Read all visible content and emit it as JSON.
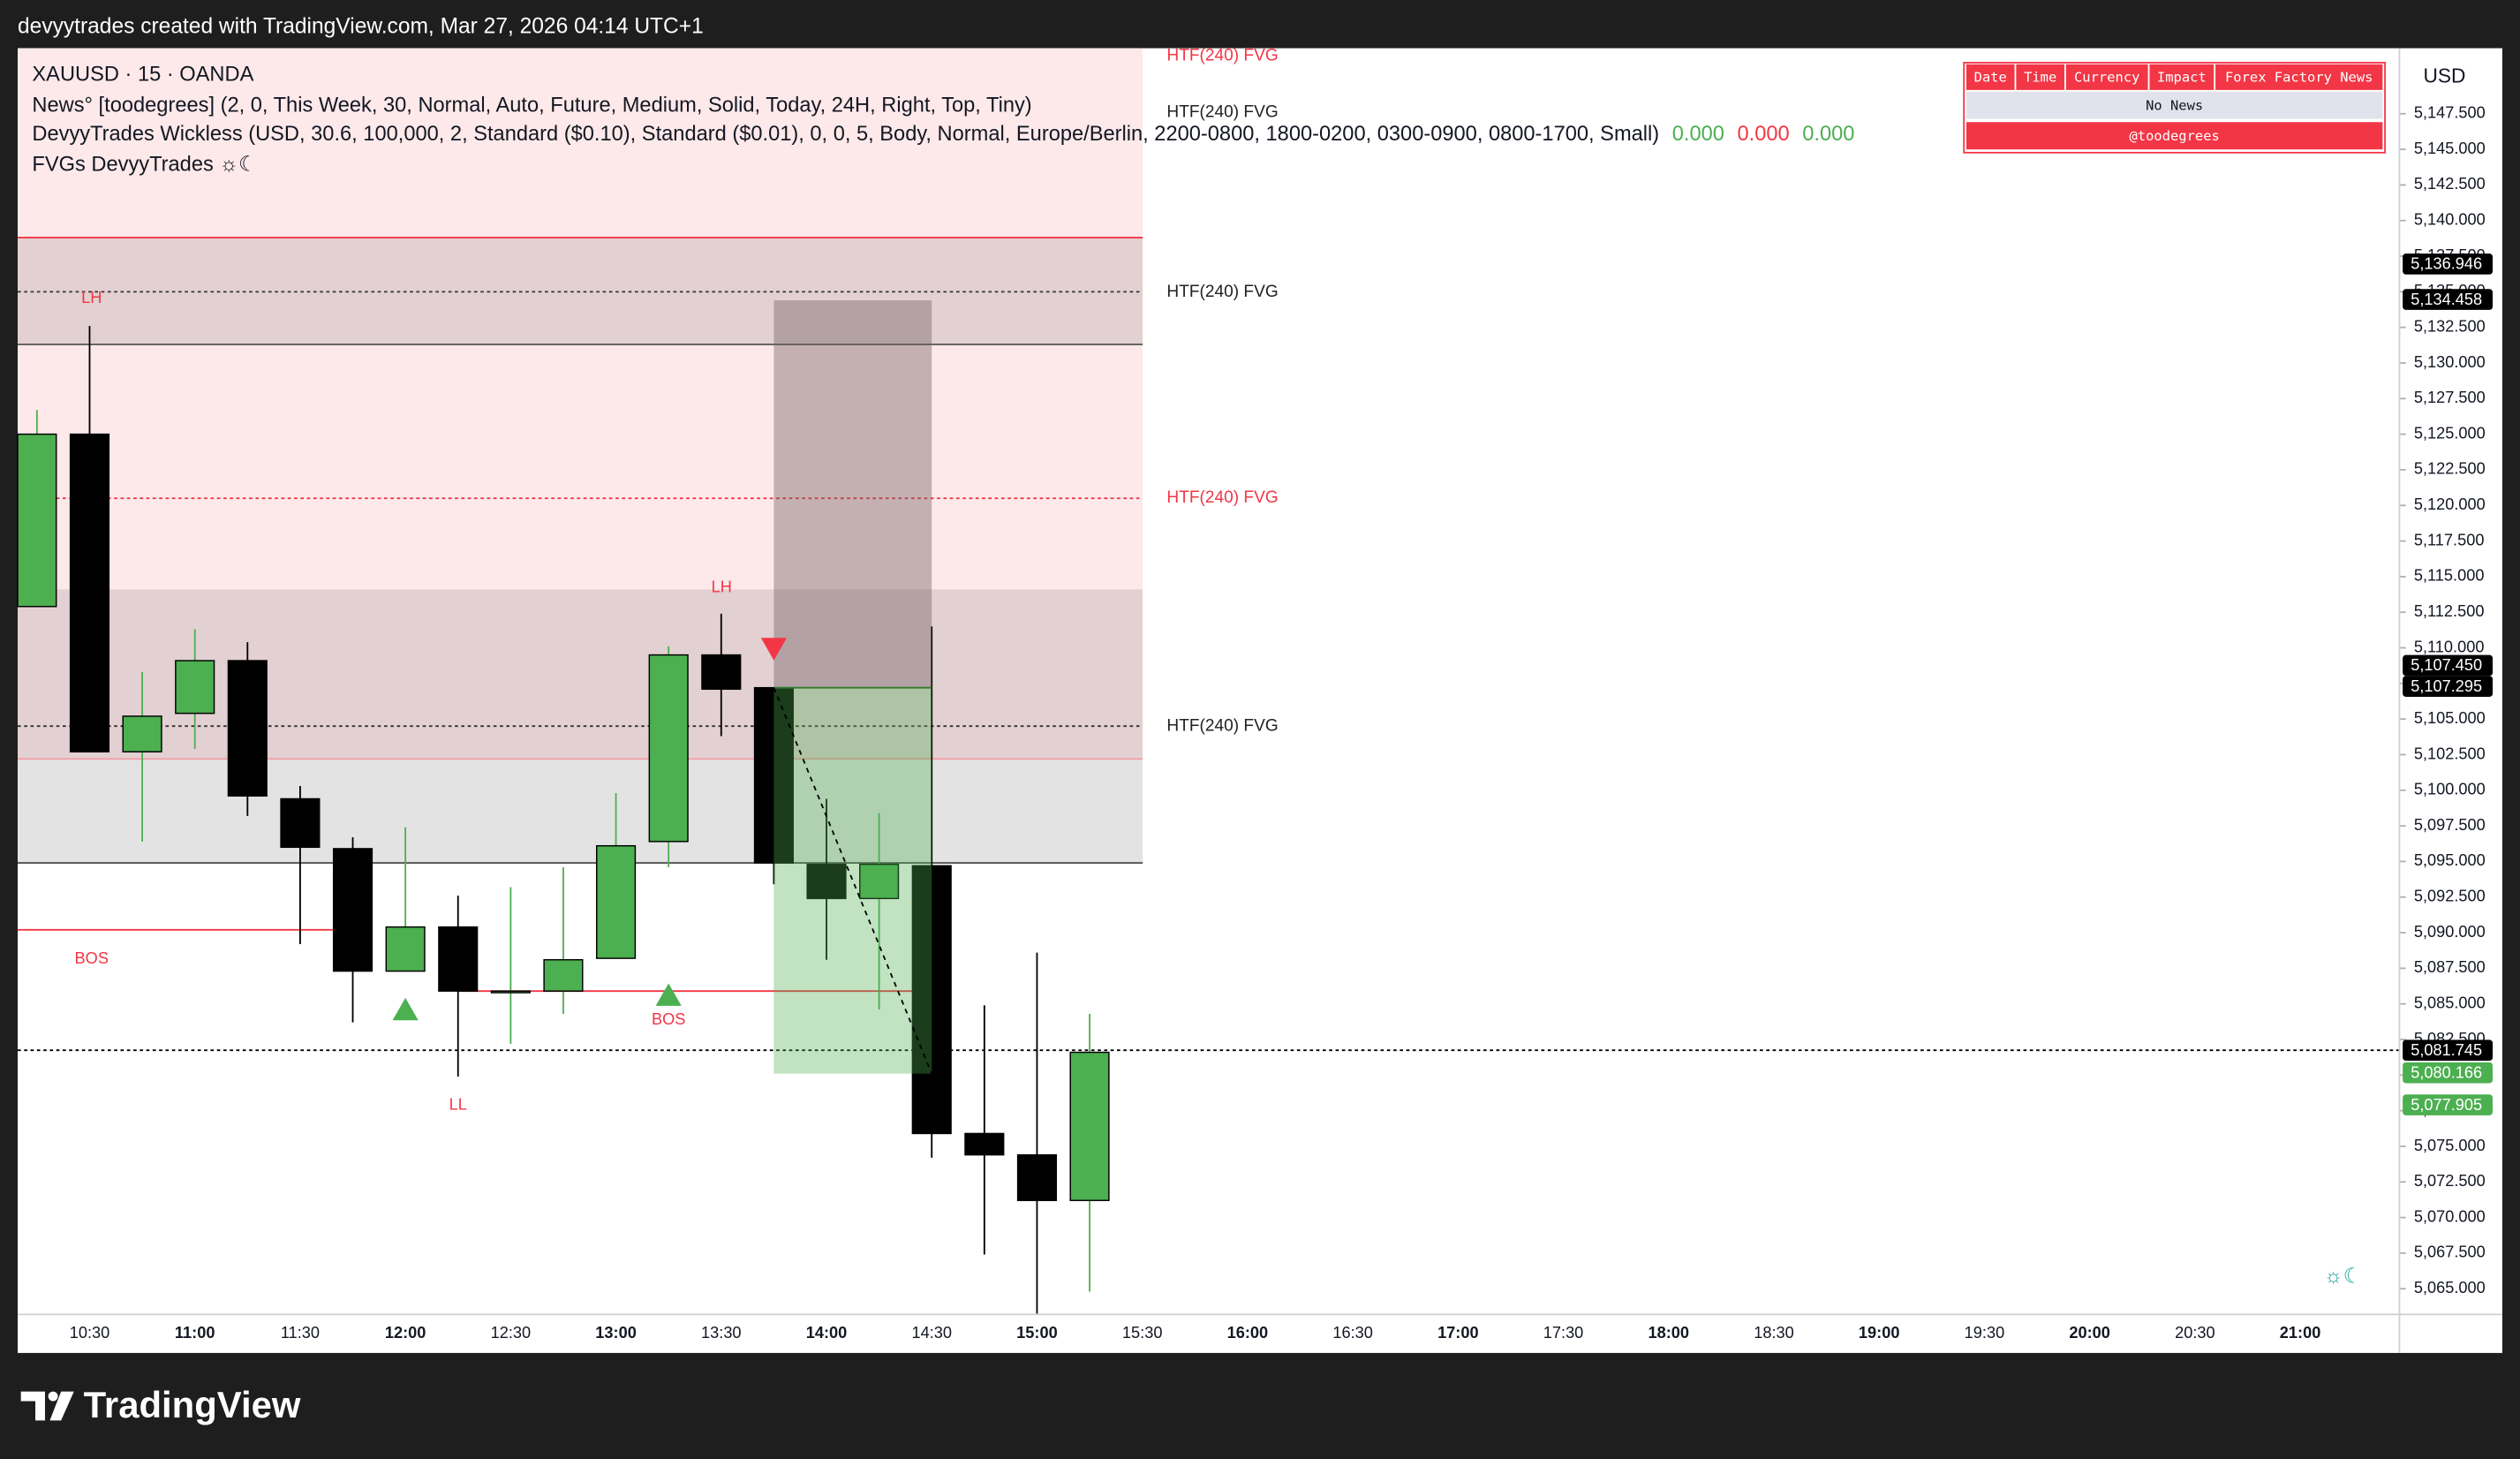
{
  "header": "devyytrades created with TradingView.com, Mar 27, 2026 04:14 UTC+1",
  "logo": "TradingView",
  "chart_data": {
    "type": "candlestick",
    "symbol_line": "XAUUSD · 15 · OANDA",
    "indicators": [
      "News° [toodegrees] (2, 0, This Week, 30, Normal, Auto, Future, Medium, Solid, Today, 24H, Right, Top, Tiny)",
      "DevyyTrades Wickless (USD, 30.6, 100,000, 2, Standard ($0.10), Standard ($0.01), 0, 0, 5, Body, Normal, Europe/Berlin, 2200-0800, 1800-0200, 0300-0900, 0800-1700, Small)",
      "FVGs DevyyTrades ☼☾"
    ],
    "indicator_values": [
      {
        "value": 0,
        "label": "0.000",
        "color": "#4caf50"
      },
      {
        "value": 0,
        "label": "0.000",
        "color": "#f23645"
      },
      {
        "value": 0,
        "label": "0.000",
        "color": "#4caf50"
      }
    ],
    "currency": "USD",
    "watermark": "☼☾",
    "categories": [
      null,
      "10:30",
      null,
      "11:00",
      null,
      "11:30",
      null,
      "12:00",
      null,
      "12:30",
      null,
      "13:00",
      null,
      "13:30",
      null,
      "14:00",
      null,
      "14:30",
      null,
      "15:00",
      null,
      "15:30",
      null,
      "16:00",
      null,
      "16:30",
      null,
      "17:00",
      null,
      "17:30",
      null,
      "18:00",
      null,
      "18:30",
      null,
      "19:00",
      null,
      "19:30",
      null,
      "20:00",
      null,
      "20:30",
      null,
      "21:00"
    ],
    "open": [
      5112.9,
      5125.0,
      5102.7,
      5105.4,
      5109.1,
      5099.4,
      5095.9,
      5087.3,
      5090.4,
      5085.9,
      5085.9,
      5088.2,
      5096.4,
      5109.5,
      5107.2,
      5094.8,
      5092.4,
      5094.7,
      5075.9,
      5074.4,
      5071.2,
      null,
      null,
      null,
      null,
      null,
      null,
      null,
      null,
      null,
      null,
      null,
      null,
      null,
      null,
      null,
      null,
      null,
      null,
      null,
      null,
      null,
      null,
      null
    ],
    "high": [
      5126.7,
      5132.6,
      5108.3,
      5111.3,
      5110.4,
      5100.3,
      5096.7,
      5097.4,
      5092.6,
      5093.2,
      5094.6,
      5099.8,
      5110.1,
      5112.4,
      5107.2,
      5099.4,
      5098.4,
      5111.5,
      5084.9,
      5088.6,
      5084.3,
      null,
      null,
      null,
      null,
      null,
      null,
      null,
      null,
      null,
      null,
      null,
      null,
      null,
      null,
      null,
      null,
      null,
      null,
      null,
      null,
      null,
      null,
      null
    ],
    "low": [
      5112.9,
      5102.7,
      5096.4,
      5102.9,
      5098.2,
      5089.2,
      5083.7,
      5087.3,
      5079.9,
      5082.2,
      5084.3,
      5088.2,
      5094.6,
      5103.8,
      5093.4,
      5088.1,
      5084.6,
      5074.2,
      5067.4,
      5063.2,
      5064.8,
      null,
      null,
      null,
      null,
      null,
      null,
      null,
      null,
      null,
      null,
      null,
      null,
      null,
      null,
      null,
      null,
      null,
      null,
      null,
      null,
      null,
      null,
      null
    ],
    "close": [
      5125.0,
      5102.7,
      5105.2,
      5109.1,
      5099.6,
      5096.0,
      5087.3,
      5090.4,
      5085.9,
      5085.9,
      5088.1,
      5096.1,
      5109.5,
      5107.1,
      5094.9,
      5092.4,
      5094.8,
      5075.9,
      5074.4,
      5071.2,
      5081.6,
      null,
      null,
      null,
      null,
      null,
      null,
      null,
      null,
      null,
      null,
      null,
      null,
      null,
      null,
      null,
      null,
      null,
      null,
      null,
      null,
      null,
      null,
      null
    ],
    "up_color": "#4caf50",
    "down_color": "#000000",
    "ylim": [
      5063.2,
      5152.1
    ],
    "yticks": [
      {
        "value": 5065,
        "label": "5,065.000"
      },
      {
        "value": 5067.5,
        "label": "5,067.500"
      },
      {
        "value": 5070,
        "label": "5,070.000"
      },
      {
        "value": 5072.5,
        "label": "5,072.500"
      },
      {
        "value": 5075,
        "label": "5,075.000"
      },
      {
        "value": 5077.5,
        "label": "5,077.500"
      },
      {
        "value": 5080,
        "label": "5,080.000"
      },
      {
        "value": 5082.5,
        "label": "5,082.500"
      },
      {
        "value": 5085,
        "label": "5,085.000"
      },
      {
        "value": 5087.5,
        "label": "5,087.500"
      },
      {
        "value": 5090,
        "label": "5,090.000"
      },
      {
        "value": 5092.5,
        "label": "5,092.500"
      },
      {
        "value": 5095,
        "label": "5,095.000"
      },
      {
        "value": 5097.5,
        "label": "5,097.500"
      },
      {
        "value": 5100,
        "label": "5,100.000"
      },
      {
        "value": 5102.5,
        "label": "5,102.500"
      },
      {
        "value": 5105,
        "label": "5,105.000"
      },
      {
        "value": 5107.5,
        "label": "5,107.500"
      },
      {
        "value": 5110,
        "label": "5,110.000"
      },
      {
        "value": 5112.5,
        "label": "5,112.500"
      },
      {
        "value": 5115,
        "label": "5,115.000"
      },
      {
        "value": 5117.5,
        "label": "5,117.500"
      },
      {
        "value": 5120,
        "label": "5,120.000"
      },
      {
        "value": 5122.5,
        "label": "5,122.500"
      },
      {
        "value": 5125,
        "label": "5,125.000"
      },
      {
        "value": 5127.5,
        "label": "5,127.500"
      },
      {
        "value": 5130,
        "label": "5,130.000"
      },
      {
        "value": 5132.5,
        "label": "5,132.500"
      },
      {
        "value": 5135,
        "label": "5,135.000"
      },
      {
        "value": 5137.5,
        "label": "5,137.500"
      },
      {
        "value": 5140,
        "label": "5,140.000"
      },
      {
        "value": 5142.5,
        "label": "5,142.500"
      },
      {
        "value": 5145,
        "label": "5,145.000"
      },
      {
        "value": 5147.5,
        "label": "5,147.500"
      }
    ],
    "price_labels": [
      {
        "value": 5136.946,
        "label": "5,136.946",
        "color": "#000000"
      },
      {
        "value": 5134.458,
        "label": "5,134.458",
        "color": "#000000"
      },
      {
        "value": 5107.45,
        "label": "5,107.450",
        "color": "#000000"
      },
      {
        "value": 5107.295,
        "label": "5,107.295",
        "color": "#000000"
      },
      {
        "value": 5081.745,
        "label": "5,081.745",
        "color": "#000000"
      },
      {
        "value": 5080.166,
        "label": "5,080.166",
        "color": "#4caf50"
      },
      {
        "value": 5077.905,
        "label": "5,077.905",
        "color": "#4caf50"
      }
    ],
    "zones": [
      {
        "top": 5152.1,
        "bottom": 5102.2,
        "color": "#fde9ea"
      },
      {
        "top": 5138.8,
        "bottom": 5131.3,
        "color": "#e3d0d2"
      },
      {
        "top": 5114.1,
        "bottom": 5102.2,
        "color": "#e3d0d2"
      },
      {
        "top": 5102.2,
        "bottom": 5094.9,
        "color": "#e3e3e3"
      }
    ],
    "position": {
      "stop": 5134.4,
      "entry": 5107.2,
      "target": 5080.1
    },
    "levels": [
      {
        "value": 5138.8,
        "color": "#f23645",
        "style": "solid"
      },
      {
        "value": 5131.3,
        "color": "#555555",
        "style": "solid"
      },
      {
        "value": 5135.0,
        "color": "#333333",
        "style": "dotted"
      },
      {
        "value": 5120.5,
        "color": "#f23645",
        "style": "dotted"
      },
      {
        "value": 5104.5,
        "color": "#333333",
        "style": "dotted"
      },
      {
        "value": 5102.2,
        "color": "#f2a0a6",
        "style": "solid"
      },
      {
        "value": 5094.9,
        "color": "#555555",
        "style": "solid"
      },
      {
        "value": 5090.2,
        "color": "#f23645",
        "style": "solid"
      },
      {
        "value": 5085.9,
        "color": "#f23645",
        "style": "solid"
      },
      {
        "value": 5081.745,
        "color": "#000000",
        "style": "dotted"
      }
    ],
    "annotations": [
      {
        "text": "LH",
        "color": "#f23645"
      },
      {
        "text": "LH",
        "color": "#f23645"
      },
      {
        "text": "LL",
        "color": "#f23645"
      },
      {
        "text": "BOS",
        "color": "#f23645"
      },
      {
        "text": "BOS",
        "color": "#f23645"
      }
    ],
    "fvg_labels": [
      {
        "text": "HTF(240) FVG",
        "color": "#f23645"
      },
      {
        "text": "HTF(240) FVG",
        "color": "#222222"
      },
      {
        "text": "HTF(240) FVG",
        "color": "#222222"
      },
      {
        "text": "HTF(240) FVG",
        "color": "#f23645"
      },
      {
        "text": "HTF(240) FVG",
        "color": "#222222"
      }
    ],
    "news_table": {
      "headers": [
        "Date",
        "Time",
        "Currency",
        "Impact",
        "Forex Factory News"
      ],
      "rows": [
        "No News",
        "@toodegrees"
      ]
    }
  }
}
